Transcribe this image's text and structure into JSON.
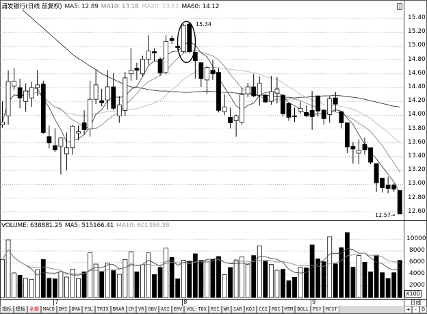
{
  "price_legend": {
    "title": "浦发银行(日线 前复权)",
    "ma5": "MA5: 12.89",
    "ma10": "MA10: 13.18",
    "ma20": "MA20: 13.61",
    "ma60": "MA60: 14.12"
  },
  "volume_legend": {
    "volume": "VOLUME: 638881.25",
    "ma5": "MA5: 515166.41",
    "ma10": "MA10: 601386.38"
  },
  "annotations": {
    "high": "15.34",
    "low": "12.57→"
  },
  "volume_unit": "X100",
  "period": "日线",
  "zoom_buttons": [
    "+",
    "-",
    "0"
  ],
  "date_labels": [
    "7",
    "8",
    "9"
  ],
  "tabs": [
    "指标",
    "模板",
    "全部",
    "MACD",
    "DMI",
    "DMA",
    "FSL",
    "TRIX",
    "BRAR",
    "CR",
    "VR",
    "OBV",
    "ASI",
    "EMV",
    "VOL-TDX",
    "RSI",
    "WR",
    "SAR",
    "KDJ",
    "CCI",
    "ROC",
    "MTM",
    "BOLL",
    "PSY",
    "MCST"
  ],
  "active_tab": "全部",
  "colors": {
    "up": "#ffffff",
    "down": "#000000",
    "ma5": "#444444",
    "ma10": "#888888",
    "ma20": "#bbbbbb",
    "ma60": "#333333",
    "active_tab": "#dd0000"
  },
  "chart_data": [
    {
      "type": "candlestick",
      "title": "浦发银行(日线 前复权)",
      "ylim": [
        12.48,
        15.53
      ],
      "yticks": [
        "15.40",
        "15.20",
        "15.00",
        "14.80",
        "14.60",
        "14.40",
        "14.20",
        "14.00",
        "13.80",
        "13.60",
        "13.40",
        "13.20",
        "13.00",
        "12.80",
        "12.60"
      ],
      "grid": true,
      "x_month_labels": [
        {
          "label": "7",
          "index": 9
        },
        {
          "label": "8",
          "index": 31
        },
        {
          "label": "9",
          "index": 53
        }
      ],
      "ohlc": [
        [
          13.86,
          14.2,
          13.82,
          13.9
        ],
        [
          13.99,
          14.65,
          13.86,
          14.49
        ],
        [
          14.42,
          14.68,
          14.36,
          14.49
        ],
        [
          14.4,
          14.53,
          14.1,
          14.25
        ],
        [
          14.2,
          14.46,
          14.05,
          14.35
        ],
        [
          14.25,
          14.48,
          14.12,
          14.4
        ],
        [
          14.4,
          14.65,
          14.28,
          14.44
        ],
        [
          14.45,
          14.5,
          13.73,
          13.75
        ],
        [
          13.69,
          13.85,
          13.52,
          13.6
        ],
        [
          13.56,
          13.81,
          13.47,
          13.5
        ],
        [
          13.55,
          13.68,
          13.14,
          13.67
        ],
        [
          13.44,
          13.75,
          13.2,
          13.53
        ],
        [
          13.53,
          13.86,
          13.43,
          13.84
        ],
        [
          13.74,
          13.85,
          13.64,
          13.76
        ],
        [
          13.89,
          14.07,
          13.72,
          13.79
        ],
        [
          13.8,
          14.5,
          13.69,
          14.23
        ],
        [
          14.23,
          14.66,
          14.16,
          14.44
        ],
        [
          14.21,
          14.38,
          14.13,
          14.18
        ],
        [
          14.22,
          14.65,
          14.08,
          14.41
        ],
        [
          14.41,
          14.61,
          14.07,
          14.1
        ],
        [
          13.99,
          14.28,
          13.89,
          14.15
        ],
        [
          14.07,
          14.63,
          13.99,
          14.54
        ],
        [
          14.6,
          14.97,
          14.5,
          14.65
        ],
        [
          14.68,
          14.76,
          14.51,
          14.65
        ],
        [
          14.6,
          14.86,
          14.56,
          14.81
        ],
        [
          14.81,
          15.16,
          14.73,
          14.93
        ],
        [
          14.92,
          14.97,
          14.78,
          14.9
        ],
        [
          14.81,
          14.84,
          14.57,
          14.61
        ],
        [
          14.62,
          15.16,
          14.59,
          15.07
        ],
        [
          15.11,
          15.15,
          15.03,
          15.08
        ],
        [
          15.0,
          15.02,
          14.94,
          14.98
        ],
        [
          14.92,
          15.32,
          14.9,
          15.3
        ],
        [
          15.32,
          15.34,
          14.9,
          14.92
        ],
        [
          14.91,
          14.92,
          14.53,
          14.79
        ],
        [
          14.76,
          14.76,
          14.41,
          14.53
        ],
        [
          14.51,
          14.71,
          14.3,
          14.69
        ],
        [
          14.65,
          14.8,
          14.51,
          14.6
        ],
        [
          14.62,
          14.68,
          14.04,
          14.07
        ],
        [
          14.05,
          14.3,
          14.0,
          14.12
        ],
        [
          13.97,
          14.11,
          13.81,
          13.89
        ],
        [
          13.92,
          14.01,
          13.69,
          13.99
        ],
        [
          13.9,
          14.4,
          13.86,
          14.3
        ],
        [
          14.31,
          14.47,
          14.26,
          14.41
        ],
        [
          14.41,
          14.6,
          14.26,
          14.28
        ],
        [
          14.29,
          14.56,
          14.14,
          14.46
        ],
        [
          14.29,
          14.31,
          14.18,
          14.19
        ],
        [
          14.2,
          14.57,
          14.15,
          14.34
        ],
        [
          14.32,
          14.55,
          14.17,
          14.38
        ],
        [
          14.29,
          14.31,
          13.98,
          14.02
        ],
        [
          14.17,
          14.18,
          13.92,
          13.97
        ],
        [
          13.99,
          14.11,
          13.9,
          13.98
        ],
        [
          14.06,
          14.2,
          14.02,
          14.1
        ],
        [
          14.04,
          14.14,
          13.97,
          13.99
        ],
        [
          14.07,
          14.35,
          13.79,
          13.98
        ],
        [
          14.28,
          14.28,
          13.98,
          14.06
        ],
        [
          14.07,
          14.09,
          13.86,
          13.95
        ],
        [
          14.01,
          14.27,
          13.89,
          14.24
        ],
        [
          14.25,
          14.34,
          14.05,
          14.16
        ],
        [
          14.05,
          14.06,
          13.81,
          13.89
        ],
        [
          13.89,
          13.89,
          13.45,
          13.54
        ],
        [
          13.55,
          13.61,
          13.3,
          13.51
        ],
        [
          13.45,
          13.65,
          13.29,
          13.49
        ],
        [
          13.58,
          13.68,
          13.43,
          13.5
        ],
        [
          13.53,
          13.53,
          13.29,
          13.32
        ],
        [
          13.3,
          13.3,
          12.89,
          13.02
        ],
        [
          13.09,
          13.09,
          12.88,
          12.95
        ],
        [
          12.99,
          13.11,
          12.87,
          12.94
        ],
        [
          12.99,
          13.01,
          12.89,
          12.93
        ],
        [
          12.91,
          12.91,
          12.57,
          12.57
        ]
      ],
      "ma60": [
        15.8,
        15.72,
        15.64,
        15.56,
        15.48,
        15.41,
        15.33,
        15.26,
        15.18,
        15.11,
        15.03,
        14.96,
        14.88,
        14.82,
        14.77,
        14.71,
        14.66,
        14.6,
        14.56,
        14.52,
        14.48,
        14.44,
        14.41,
        14.4,
        14.39,
        14.37,
        14.36,
        14.35,
        14.35,
        14.34,
        14.34,
        14.33,
        14.33,
        14.34,
        14.34,
        14.35,
        14.34,
        14.34,
        14.33,
        14.33,
        14.32,
        14.31,
        14.31,
        14.3,
        14.29,
        14.29,
        14.28,
        14.27,
        14.26,
        14.26,
        14.25,
        14.26,
        14.26,
        14.27,
        14.27,
        14.28,
        14.28,
        14.29,
        14.28,
        14.27,
        14.26,
        14.25,
        14.23,
        14.21,
        14.19,
        14.17,
        14.15,
        14.13,
        14.12
      ]
    },
    {
      "type": "bar",
      "title": "VOLUME",
      "unit": "X100",
      "ylim": [
        0,
        11500
      ],
      "yticks": [
        "10000",
        "8000",
        "6000",
        "4000",
        "2000"
      ],
      "grid": true,
      "values": [
        6550,
        9900,
        4240,
        3840,
        3330,
        3140,
        4780,
        6550,
        3330,
        3220,
        4430,
        3530,
        4900,
        3250,
        4430,
        7690,
        5760,
        4430,
        5960,
        4630,
        4000,
        6550,
        7880,
        4430,
        5650,
        7690,
        3960,
        5180,
        8510,
        6900,
        3220,
        6430,
        6280,
        7530,
        6390,
        6310,
        6550,
        7060,
        3960,
        5180,
        6470,
        6980,
        5760,
        7220,
        8900,
        6240,
        5690,
        4710,
        4860,
        2900,
        3490,
        5180,
        5100,
        9060,
        6670,
        6160,
        10470,
        5800,
        8590,
        11180,
        5250,
        7220,
        6080,
        4430,
        7290,
        4280,
        3290,
        4280,
        6390
      ]
    }
  ]
}
